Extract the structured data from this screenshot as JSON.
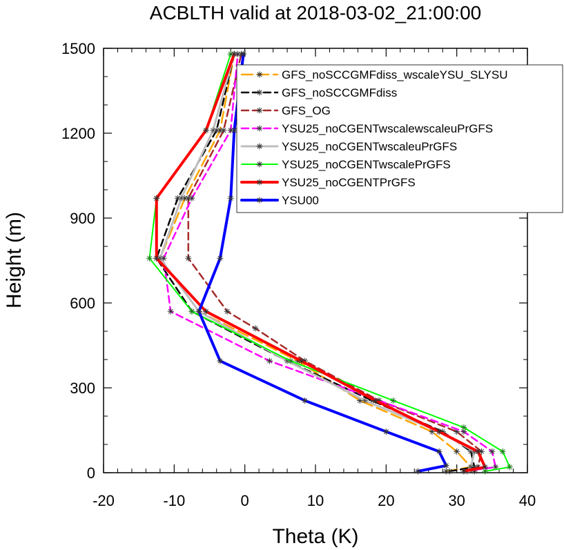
{
  "chart_data": {
    "type": "line",
    "title": "ACBLTH valid at 2018-03-02_21:00:00",
    "xlabel": "Theta (K)",
    "ylabel": "Height (m)",
    "xlim": [
      -20,
      40
    ],
    "ylim": [
      0,
      1500
    ],
    "x_ticks": [
      -20,
      -10,
      0,
      10,
      20,
      30,
      40
    ],
    "x_tick_labels": [
      "-20",
      "-10",
      "0",
      "10",
      "20",
      "30",
      "40"
    ],
    "y_ticks": [
      0,
      300,
      600,
      900,
      1200,
      1500
    ],
    "y_tick_labels": [
      "0",
      "300",
      "600",
      "900",
      "1200",
      "1500"
    ],
    "grid": false,
    "legend_position": "top-right",
    "series": [
      {
        "name": "GFS_noSCCGMFdiss_wscaleYSU_SLYSU",
        "color": "#FFA500",
        "dash": "long-dash",
        "width": 2.5,
        "points": [
          [
            28.5,
            5
          ],
          [
            32,
            20
          ],
          [
            30,
            75
          ],
          [
            26.5,
            145
          ],
          [
            16.3,
            255
          ],
          [
            7.5,
            395
          ],
          [
            -6.5,
            570
          ],
          [
            -12,
            758
          ],
          [
            -8.5,
            970
          ],
          [
            -3.5,
            1210
          ],
          [
            -1.5,
            1480
          ]
        ]
      },
      {
        "name": "GFS_noSCCGMFdiss",
        "color": "#000000",
        "dash": "dash",
        "width": 2.5,
        "points": [
          [
            29,
            5
          ],
          [
            32.5,
            20
          ],
          [
            32,
            75
          ],
          [
            28,
            145
          ],
          [
            18,
            255
          ],
          [
            6,
            395
          ],
          [
            -7.5,
            570
          ],
          [
            -12.5,
            758
          ],
          [
            -9.5,
            970
          ],
          [
            -4,
            1210
          ],
          [
            -1.5,
            1480
          ]
        ]
      },
      {
        "name": "GFS_OG",
        "color": "#A52A2A",
        "dash": "dash",
        "width": 2.5,
        "points": [
          [
            32.5,
            5
          ],
          [
            33,
            20
          ],
          [
            33.5,
            75
          ],
          [
            30,
            145
          ],
          [
            19,
            255
          ],
          [
            8.5,
            395
          ],
          [
            1.5,
            510
          ],
          [
            -2.5,
            570
          ],
          [
            -8,
            758
          ],
          [
            -8,
            970
          ],
          [
            -3,
            1210
          ],
          [
            -0.5,
            1480
          ]
        ]
      },
      {
        "name": "YSU25_noCGENTwscalewscaleuPrGFS",
        "color": "#FF00FF",
        "dash": "dash",
        "width": 2.5,
        "points": [
          [
            31,
            5
          ],
          [
            35.5,
            20
          ],
          [
            35,
            75
          ],
          [
            31,
            145
          ],
          [
            19,
            255
          ],
          [
            3.5,
            395
          ],
          [
            -10.5,
            570
          ],
          [
            -11.5,
            758
          ],
          [
            -7.5,
            970
          ],
          [
            -2,
            1210
          ],
          [
            -1,
            1480
          ]
        ]
      },
      {
        "name": "YSU25_noCGENTwscaleuPrGFS",
        "color": "#BEBEBE",
        "dash": "solid",
        "width": 3,
        "points": [
          [
            31.5,
            5
          ],
          [
            32,
            20
          ],
          [
            32.5,
            75
          ],
          [
            27.5,
            145
          ],
          [
            17,
            255
          ],
          [
            6,
            395
          ],
          [
            -6.5,
            570
          ],
          [
            -12,
            758
          ],
          [
            -9,
            970
          ],
          [
            -4.5,
            1210
          ],
          [
            -1.5,
            1480
          ]
        ]
      },
      {
        "name": "YSU25_noCGENTwscalePrGFS",
        "color": "#00FF00",
        "dash": "solid",
        "width": 2,
        "points": [
          [
            34,
            5
          ],
          [
            37.5,
            20
          ],
          [
            36.5,
            75
          ],
          [
            31,
            160
          ],
          [
            21,
            255
          ],
          [
            6.5,
            395
          ],
          [
            -7.5,
            570
          ],
          [
            -13.5,
            758
          ],
          [
            -12.5,
            970
          ],
          [
            -5.5,
            1210
          ],
          [
            -2,
            1480
          ]
        ]
      },
      {
        "name": "YSU25_noCGENTPrGFS",
        "color": "#FF0000",
        "dash": "solid",
        "width": 4,
        "points": [
          [
            31,
            5
          ],
          [
            34,
            20
          ],
          [
            33,
            75
          ],
          [
            27.5,
            145
          ],
          [
            18.5,
            255
          ],
          [
            8,
            395
          ],
          [
            -5.5,
            570
          ],
          [
            -12.5,
            758
          ],
          [
            -12.5,
            970
          ],
          [
            -5.5,
            1210
          ],
          [
            -1.5,
            1480
          ]
        ]
      },
      {
        "name": "YSU00",
        "color": "#0000FF",
        "dash": "solid",
        "width": 4,
        "points": [
          [
            24.5,
            5
          ],
          [
            28.5,
            25
          ],
          [
            27.5,
            75
          ],
          [
            20,
            145
          ],
          [
            8.5,
            255
          ],
          [
            -3.5,
            395
          ],
          [
            -6.5,
            570
          ],
          [
            -3.5,
            758
          ],
          [
            -2,
            970
          ],
          [
            -1.5,
            1210
          ],
          [
            -0.2,
            1480
          ]
        ]
      }
    ]
  }
}
